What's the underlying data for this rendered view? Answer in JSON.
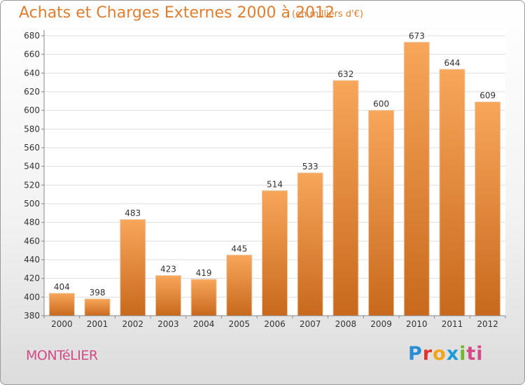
{
  "header": {
    "title": "Achats et Charges Externes 2000 à 2012",
    "unit": "(en milliers d'€)"
  },
  "footer": {
    "commune": "MONTéLIER",
    "logo_letters": [
      "P",
      "r",
      "o",
      "x",
      "i",
      "ti"
    ]
  },
  "colors": {
    "title": "#e07d2e",
    "bar_top": "#f8a65a",
    "bar_bottom": "#c8691d",
    "commune": "#d24a86"
  },
  "chart_data": {
    "type": "bar",
    "title": "Achats et Charges Externes 2000 à 2012",
    "categories": [
      "2000",
      "2001",
      "2002",
      "2003",
      "2004",
      "2005",
      "2006",
      "2007",
      "2008",
      "2009",
      "2010",
      "2011",
      "2012"
    ],
    "values": [
      404,
      398,
      483,
      423,
      419,
      445,
      514,
      533,
      632,
      600,
      673,
      644,
      609
    ],
    "ylim": [
      380,
      680
    ],
    "yticks": [
      380,
      400,
      420,
      440,
      460,
      480,
      500,
      520,
      540,
      560,
      580,
      600,
      620,
      640,
      660,
      680
    ],
    "grid": true
  }
}
